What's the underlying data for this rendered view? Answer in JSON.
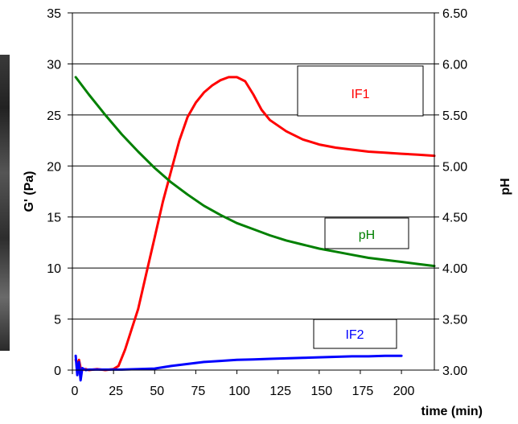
{
  "chart_data": {
    "type": "line",
    "title": "",
    "xlabel": "time (min)",
    "ylabel": "G' (Pa)",
    "y2label": "pH",
    "xlim": [
      0,
      220
    ],
    "ylim": [
      0,
      35
    ],
    "y2lim": [
      3.0,
      6.5
    ],
    "xticks": [
      "0",
      "25",
      "50",
      "75",
      "100",
      "125",
      "150",
      "175",
      "200"
    ],
    "xtick_values": [
      0,
      25,
      50,
      75,
      100,
      125,
      150,
      175,
      200
    ],
    "yticks": [
      "0",
      "5",
      "10",
      "15",
      "20",
      "25",
      "30",
      "35"
    ],
    "ytick_values": [
      0,
      5,
      10,
      15,
      20,
      25,
      30,
      35
    ],
    "y2ticks": [
      "3.00",
      "3.50",
      "4.00",
      "4.50",
      "5.00",
      "5.50",
      "6.00",
      "6.50"
    ],
    "y2tick_values": [
      3.0,
      3.5,
      4.0,
      4.5,
      5.0,
      5.5,
      6.0,
      6.5
    ],
    "grid": "horizontal",
    "series": [
      {
        "name": "IF1",
        "axis": "left",
        "color": "#ff0000",
        "x": [
          2,
          3,
          4,
          5,
          6,
          8,
          10,
          15,
          20,
          25,
          28,
          32,
          36,
          40,
          45,
          50,
          55,
          60,
          65,
          70,
          75,
          80,
          85,
          90,
          95,
          100,
          105,
          110,
          115,
          120,
          130,
          140,
          150,
          160,
          170,
          180,
          190,
          200,
          210,
          220
        ],
        "y": [
          1.0,
          0.6,
          1.0,
          0.2,
          0.0,
          0.1,
          0.0,
          0.1,
          0.0,
          0.1,
          0.4,
          2.0,
          4.0,
          6.0,
          9.5,
          13.0,
          16.5,
          19.5,
          22.5,
          24.8,
          26.2,
          27.2,
          27.9,
          28.4,
          28.7,
          28.7,
          28.3,
          27.0,
          25.5,
          24.5,
          23.4,
          22.6,
          22.1,
          21.8,
          21.6,
          21.4,
          21.3,
          21.2,
          21.1,
          21.0
        ]
      },
      {
        "name": "pH",
        "axis": "right",
        "color": "#008000",
        "x": [
          2,
          10,
          20,
          30,
          40,
          50,
          60,
          70,
          80,
          90,
          100,
          110,
          120,
          130,
          140,
          150,
          160,
          170,
          180,
          190,
          200,
          210,
          220
        ],
        "y": [
          5.87,
          5.7,
          5.5,
          5.31,
          5.14,
          4.98,
          4.84,
          4.72,
          4.61,
          4.52,
          4.44,
          4.38,
          4.32,
          4.27,
          4.23,
          4.19,
          4.16,
          4.13,
          4.1,
          4.08,
          4.06,
          4.04,
          4.02
        ]
      },
      {
        "name": "IF2",
        "axis": "left",
        "color": "#0000ff",
        "x": [
          2,
          3,
          4,
          5,
          6,
          8,
          10,
          20,
          30,
          40,
          50,
          60,
          70,
          80,
          90,
          100,
          110,
          120,
          130,
          140,
          150,
          160,
          170,
          180,
          190,
          200
        ],
        "y": [
          1.4,
          -0.5,
          0.8,
          -1.0,
          0.2,
          0.0,
          0.05,
          0.05,
          0.05,
          0.1,
          0.15,
          0.4,
          0.6,
          0.8,
          0.9,
          1.0,
          1.05,
          1.1,
          1.15,
          1.2,
          1.25,
          1.3,
          1.35,
          1.35,
          1.4,
          1.4
        ]
      }
    ],
    "legend_boxes": [
      {
        "label": "IF1",
        "color": "#ff0000"
      },
      {
        "label": "pH",
        "color": "#008000"
      },
      {
        "label": "IF2",
        "color": "#0000ff"
      }
    ]
  }
}
